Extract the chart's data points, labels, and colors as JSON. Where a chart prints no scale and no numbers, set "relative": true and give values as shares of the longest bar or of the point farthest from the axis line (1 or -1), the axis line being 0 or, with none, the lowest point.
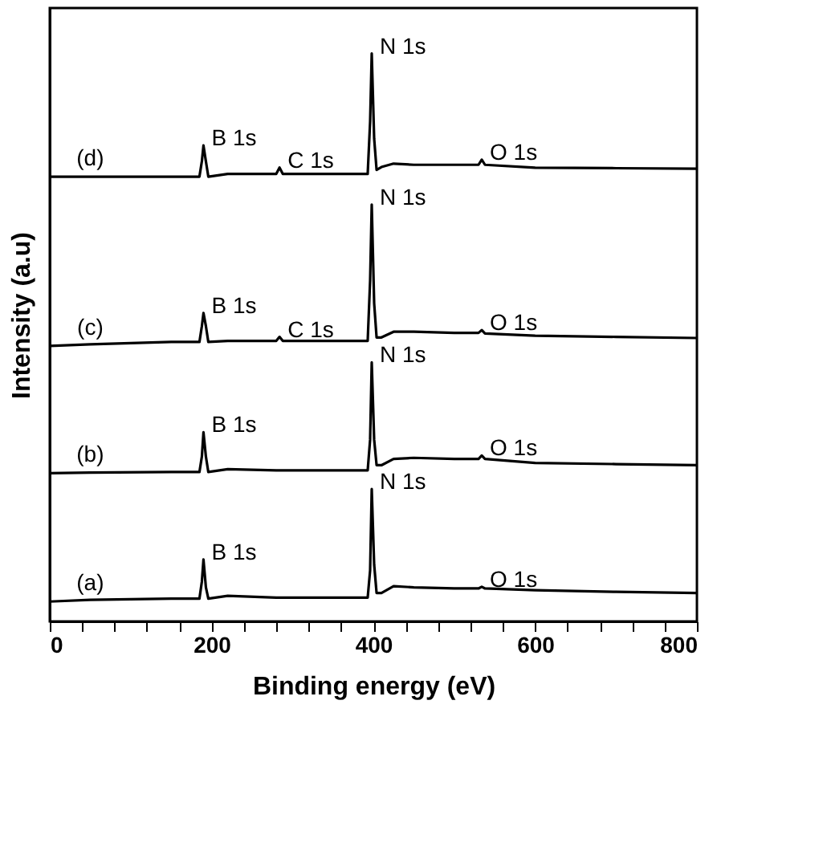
{
  "chart_data": {
    "type": "line",
    "relative": true,
    "xlabel": "Binding energy (eV)",
    "ylabel": "Intensity (a.u)",
    "xlim": [
      0,
      800
    ],
    "xticks": [
      0,
      {
        "value": 40,
        "label": null
      },
      {
        "value": 80,
        "label": null
      },
      {
        "value": 120,
        "label": null
      },
      {
        "value": 160,
        "label": null
      },
      200,
      {
        "value": 240,
        "label": null
      },
      {
        "value": 280,
        "label": null
      },
      {
        "value": 320,
        "label": null
      },
      {
        "value": 360,
        "label": null
      },
      400,
      {
        "value": 440,
        "label": null
      },
      {
        "value": 480,
        "label": null
      },
      {
        "value": 520,
        "label": null
      },
      {
        "value": 560,
        "label": null
      },
      600,
      {
        "value": 640,
        "label": null
      },
      {
        "value": 680,
        "label": null
      },
      {
        "value": 720,
        "label": null
      },
      {
        "value": 760,
        "label": null
      },
      800
    ],
    "x": [
      0,
      50,
      150,
      185,
      188,
      190,
      193,
      196,
      220,
      280,
      284,
      288,
      360,
      393,
      396,
      398,
      401,
      404,
      410,
      425,
      450,
      500,
      530,
      534,
      538,
      600,
      700,
      800
    ],
    "grid": false,
    "legend": false,
    "line_style": "solid",
    "marker": "none",
    "series": [
      {
        "name": "(a)",
        "color": "#000000",
        "values": [
          0.035,
          0.038,
          0.04,
          0.04,
          0.07,
          0.109,
          0.06,
          0.04,
          0.045,
          0.042,
          0.042,
          0.042,
          0.042,
          0.042,
          0.09,
          0.233,
          0.1,
          0.05,
          0.05,
          0.062,
          0.06,
          0.058,
          0.058,
          0.061,
          0.058,
          0.055,
          0.052,
          0.05
        ]
      },
      {
        "name": "(b)",
        "color": "#000000",
        "values": [
          0.261,
          0.262,
          0.263,
          0.263,
          0.29,
          0.333,
          0.29,
          0.263,
          0.268,
          0.266,
          0.266,
          0.266,
          0.266,
          0.266,
          0.32,
          0.456,
          0.32,
          0.275,
          0.275,
          0.286,
          0.288,
          0.286,
          0.286,
          0.292,
          0.286,
          0.279,
          0.277,
          0.275
        ]
      },
      {
        "name": "(c)",
        "color": "#000000",
        "values": [
          0.485,
          0.488,
          0.492,
          0.492,
          0.52,
          0.543,
          0.52,
          0.492,
          0.494,
          0.494,
          0.501,
          0.494,
          0.494,
          0.494,
          0.6,
          0.734,
          0.56,
          0.5,
          0.5,
          0.51,
          0.51,
          0.508,
          0.508,
          0.513,
          0.507,
          0.503,
          0.501,
          0.499
        ]
      },
      {
        "name": "(d)",
        "color": "#000000",
        "values": [
          0.783,
          0.783,
          0.783,
          0.783,
          0.81,
          0.838,
          0.81,
          0.783,
          0.788,
          0.788,
          0.799,
          0.788,
          0.788,
          0.788,
          0.88,
          1.0,
          0.85,
          0.795,
          0.8,
          0.806,
          0.804,
          0.804,
          0.804,
          0.813,
          0.804,
          0.799,
          0.798,
          0.797
        ]
      }
    ],
    "annotations": [
      {
        "text": "B 1s",
        "x": 190,
        "y": 0.838
      },
      {
        "text": "C 1s",
        "x": 284,
        "y": 0.799
      },
      {
        "text": "N 1s",
        "x": 398,
        "y": 1.0
      },
      {
        "text": "O 1s",
        "x": 534,
        "y": 0.813
      },
      {
        "text": "B 1s",
        "x": 190,
        "y": 0.543
      },
      {
        "text": "C 1s",
        "x": 284,
        "y": 0.501
      },
      {
        "text": "N 1s",
        "x": 398,
        "y": 0.734
      },
      {
        "text": "O 1s",
        "x": 534,
        "y": 0.513
      },
      {
        "text": "B 1s",
        "x": 190,
        "y": 0.333
      },
      {
        "text": "N 1s",
        "x": 398,
        "y": 0.456
      },
      {
        "text": "O 1s",
        "x": 534,
        "y": 0.292
      },
      {
        "text": "B 1s",
        "x": 190,
        "y": 0.109
      },
      {
        "text": "N 1s",
        "x": 398,
        "y": 0.233
      },
      {
        "text": "O 1s",
        "x": 534,
        "y": 0.061
      }
    ]
  }
}
